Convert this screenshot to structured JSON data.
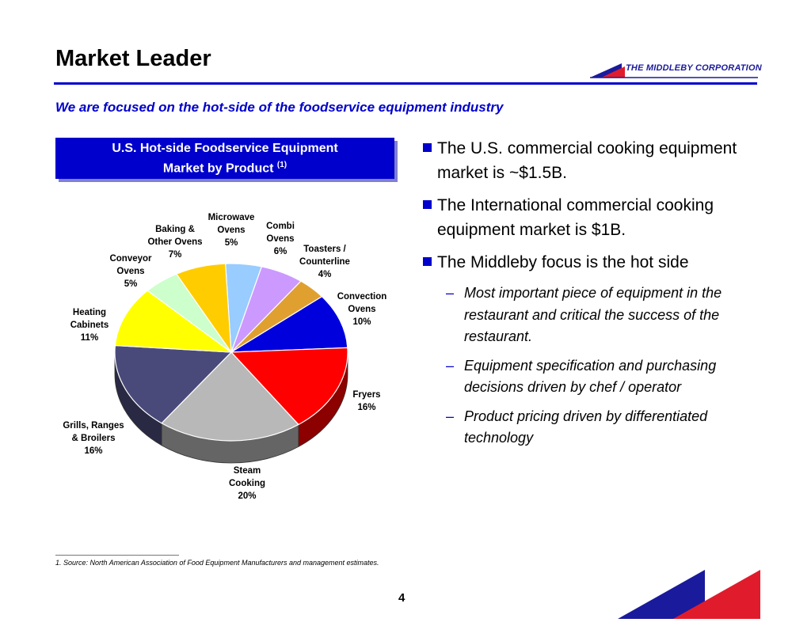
{
  "header": {
    "title": "Market Leader",
    "logo_text": "THE MIDDLEBY CORPORATION",
    "subtitle": "We are focused on the hot-side of the foodservice equipment industry"
  },
  "chart_box": {
    "line1": "U.S. Hot-side Foodservice Equipment",
    "line2": "Market by Product",
    "footnote_ref": "(1)"
  },
  "chart_data": {
    "type": "pie",
    "style": "3d",
    "slices": [
      {
        "name": "Microwave Ovens",
        "value": 5,
        "label": "5%",
        "color": "#99ccff"
      },
      {
        "name": "Combi Ovens",
        "value": 6,
        "label": "6%",
        "color": "#cc99ff"
      },
      {
        "name": "Toasters / Counterline",
        "value": 4,
        "label": "4%",
        "color": "#e0a030"
      },
      {
        "name": "Convection Ovens",
        "value": 10,
        "label": "10%",
        "color": "#0000dd"
      },
      {
        "name": "Fryers",
        "value": 16,
        "label": "16%",
        "color": "#ff0000"
      },
      {
        "name": "Steam Cooking",
        "value": 20,
        "label": "20%",
        "color": "#b8b8b8"
      },
      {
        "name": "Grills, Ranges & Broilers",
        "value": 16,
        "label": "16%",
        "color": "#4a4a7a"
      },
      {
        "name": "Heating Cabinets",
        "value": 11,
        "label": "11%",
        "color": "#ffff00"
      },
      {
        "name": "Conveyor Ovens",
        "value": 5,
        "label": "5%",
        "color": "#ccffcc"
      },
      {
        "name": "Baking & Other Ovens",
        "value": 7,
        "label": "7%",
        "color": "#ffcc00"
      }
    ],
    "slice_labels": [
      {
        "lines": [
          "Microwave",
          "Ovens",
          "5%"
        ]
      },
      {
        "lines": [
          "Combi",
          "Ovens",
          "6%"
        ]
      },
      {
        "lines": [
          "Toasters /",
          "Counterline",
          "4%"
        ]
      },
      {
        "lines": [
          "Convection",
          "Ovens",
          "10%"
        ]
      },
      {
        "lines": [
          "Fryers",
          "16%"
        ]
      },
      {
        "lines": [
          "Steam",
          "Cooking",
          "20%"
        ]
      },
      {
        "lines": [
          "Grills, Ranges",
          "& Broilers",
          "16%"
        ]
      },
      {
        "lines": [
          "Heating",
          "Cabinets",
          "11%"
        ]
      },
      {
        "lines": [
          "Conveyor",
          "Ovens",
          "5%"
        ]
      },
      {
        "lines": [
          "Baking &",
          "Other Ovens",
          "7%"
        ]
      }
    ]
  },
  "bullets": [
    {
      "text": "The U.S. commercial cooking equipment market is ~$1.5B."
    },
    {
      "text": "The International commercial cooking equipment market is $1B."
    },
    {
      "text": "The Middleby focus is the hot side"
    }
  ],
  "sub_bullets": [
    {
      "dash": "–",
      "text": "Most important piece of equipment in the restaurant and critical the success of the restaurant."
    },
    {
      "dash": "–",
      "text": "Equipment specification and purchasing decisions driven by chef / operator"
    },
    {
      "dash": "–",
      "text": "Product pricing driven by differentiated technology"
    }
  ],
  "footnote": "1.   Source:  North American Association of Food Equipment Manufacturers and management estimates.",
  "page_number": "4",
  "colors": {
    "accent": "#0000cc",
    "logo_red": "#e01c2c"
  }
}
